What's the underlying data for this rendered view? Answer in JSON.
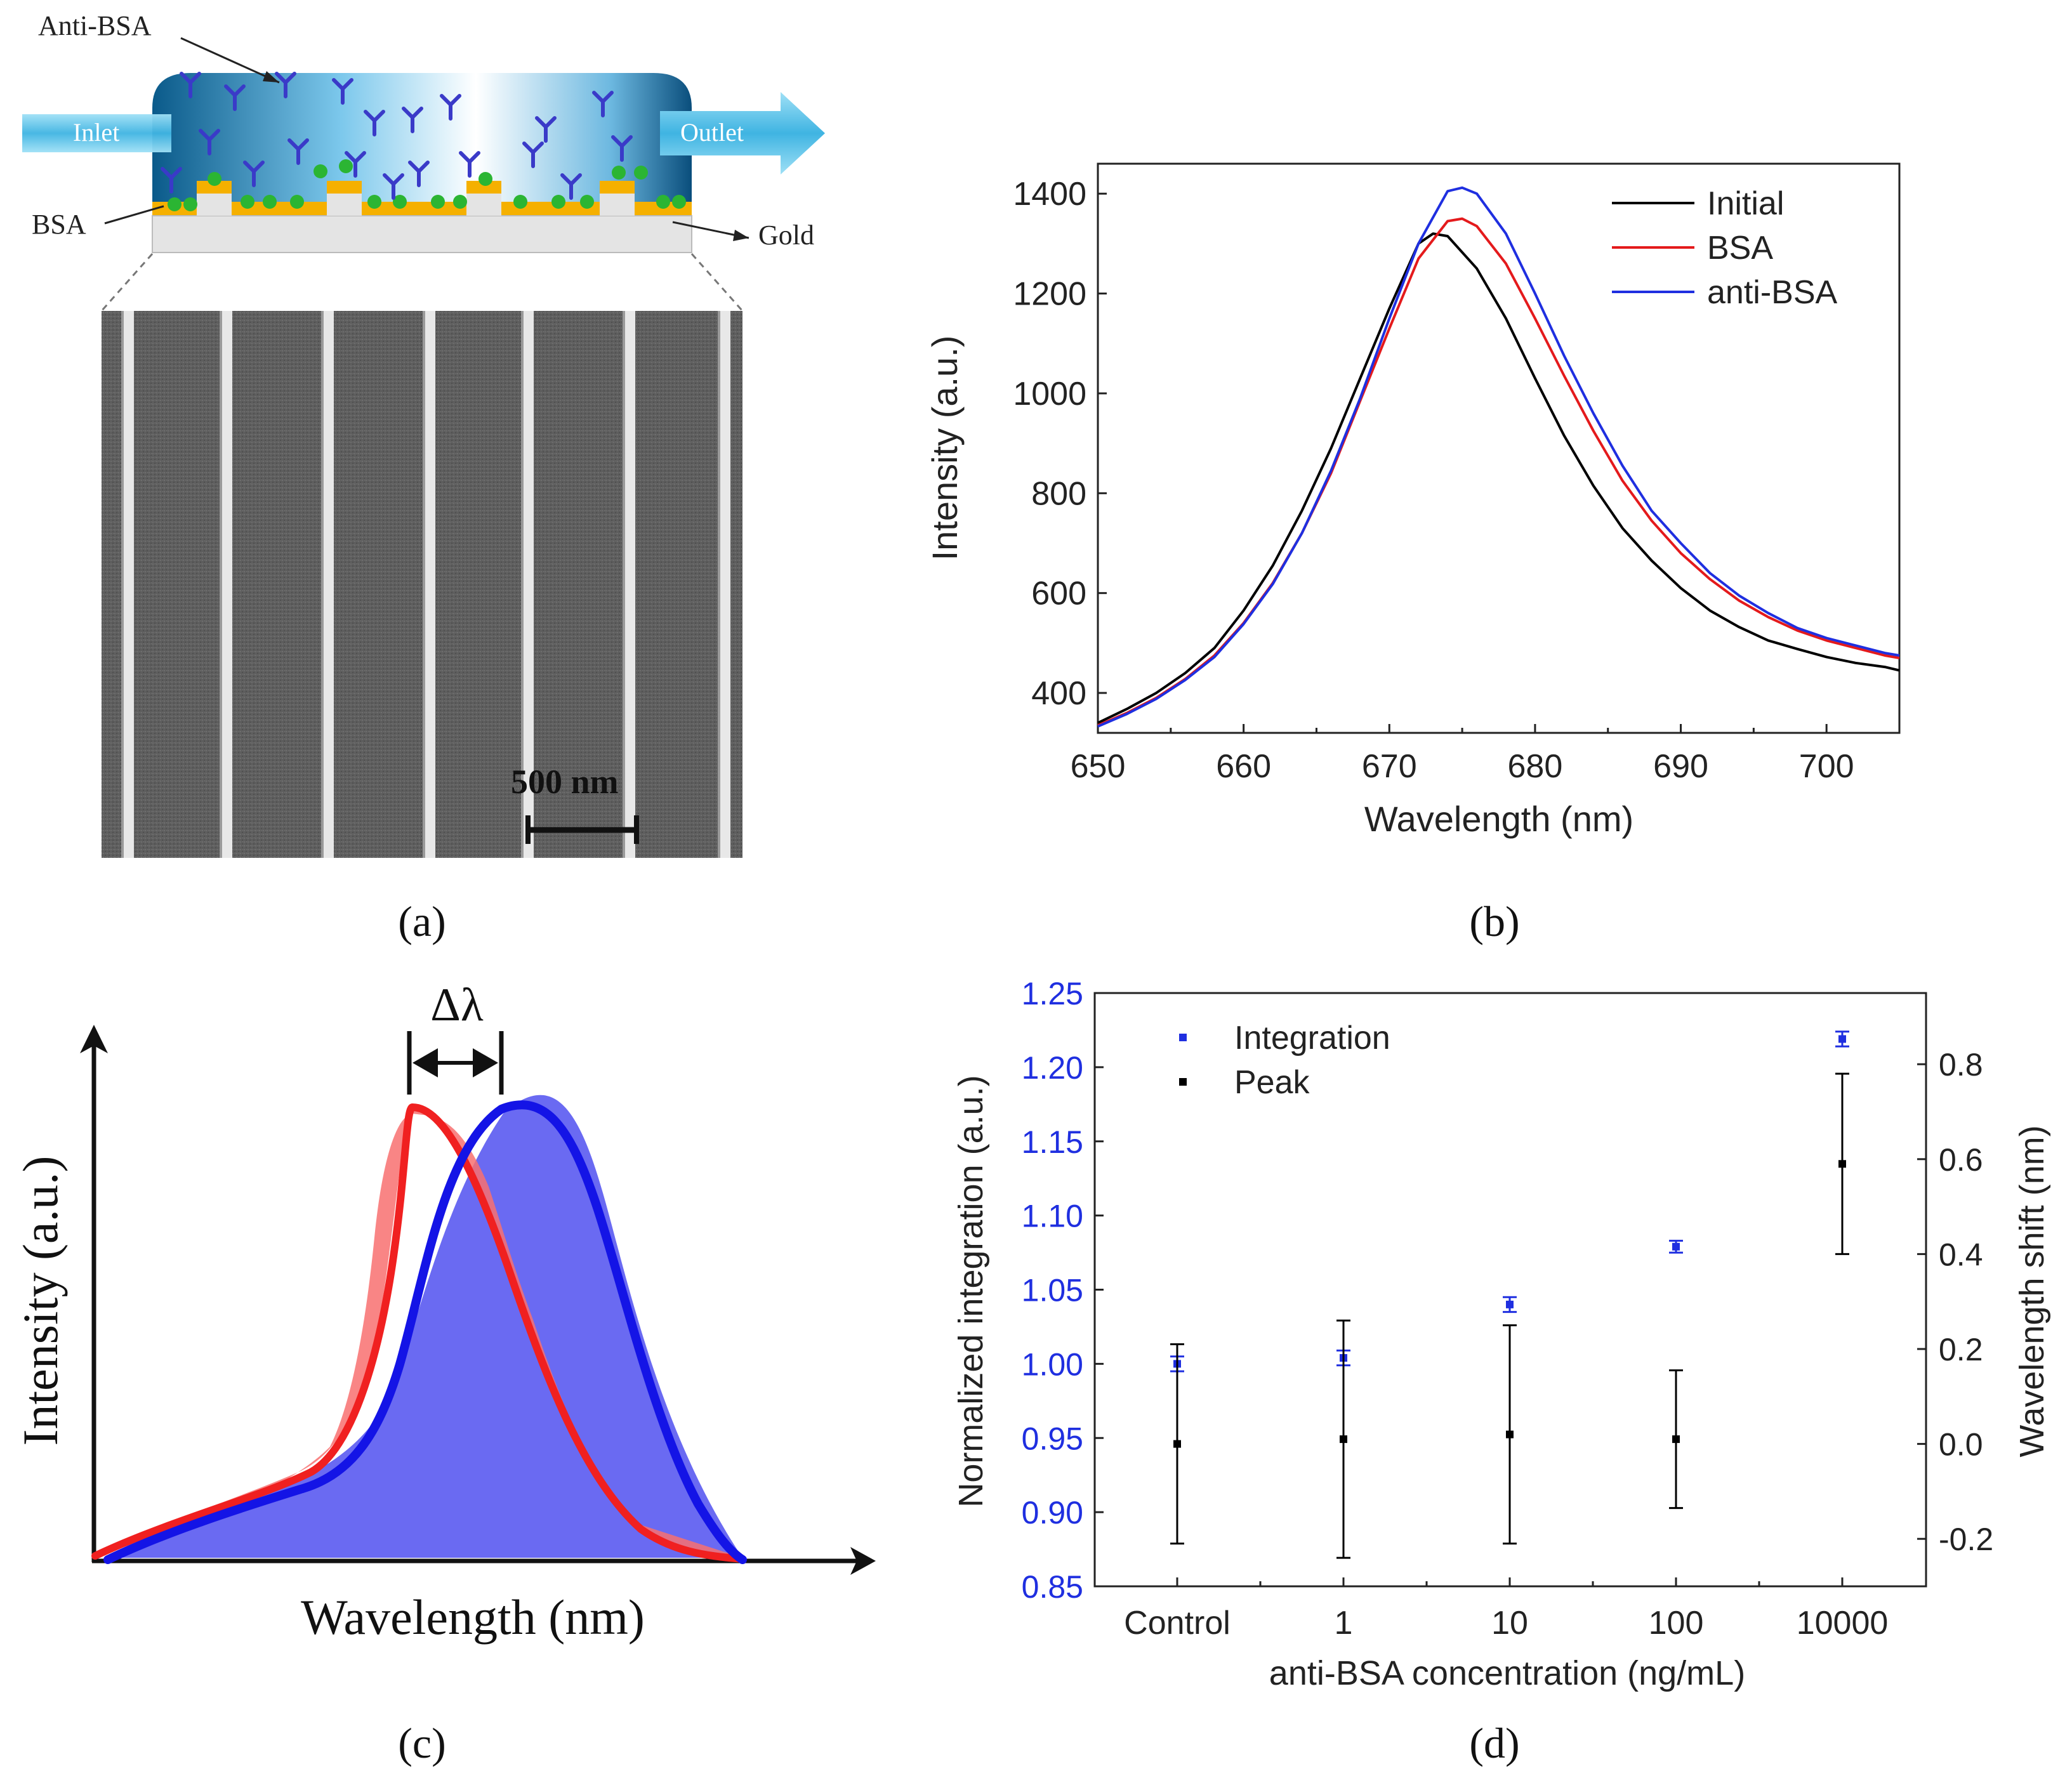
{
  "panels": {
    "a": {
      "caption": "(a)",
      "labels": {
        "anti_bsa": "Anti-BSA",
        "bsa": "BSA",
        "gold": "Gold",
        "inlet": "Inlet",
        "outlet": "Outlet",
        "scale_bar": "500 nm"
      },
      "colors": {
        "channel_dark": "#0a5a8a",
        "channel_light": "#ffffff",
        "gold": "#f5b000",
        "bsa": "#2bb533",
        "antibody": "#3a3ac8",
        "arrow": "#5cc8ea",
        "sem_background": "#5c5c5c",
        "sem_lines": "#e8e8e8"
      }
    },
    "b": {
      "caption": "(b)",
      "colors": {
        "Initial": "#000000",
        "BSA": "#e41a1c",
        "anti-BSA": "#1f2fe0"
      },
      "chart_data": {
        "type": "line",
        "xlabel": "Wavelength (nm)",
        "ylabel": "Intensity (a.u.)",
        "xlim": [
          650,
          705
        ],
        "ylim": [
          320,
          1460
        ],
        "xticks": [
          650,
          660,
          670,
          680,
          690,
          700
        ],
        "yticks": [
          400,
          600,
          800,
          1000,
          1200,
          1400
        ],
        "legend_position": "top-right",
        "grid": false,
        "series": [
          {
            "name": "Initial",
            "x": [
              650,
              652,
              654,
              656,
              658,
              660,
              662,
              664,
              666,
              668,
              670,
              672,
              673,
              674,
              676,
              678,
              680,
              682,
              684,
              686,
              688,
              690,
              692,
              694,
              696,
              698,
              700,
              702,
              704,
              705
            ],
            "y": [
              340,
              368,
              400,
              440,
              490,
              565,
              655,
              765,
              890,
              1030,
              1170,
              1300,
              1320,
              1315,
              1250,
              1150,
              1030,
              915,
              815,
              730,
              665,
              610,
              565,
              532,
              505,
              488,
              472,
              460,
              452,
              445
            ]
          },
          {
            "name": "BSA",
            "x": [
              650,
              652,
              654,
              656,
              658,
              660,
              662,
              664,
              666,
              668,
              670,
              672,
              674,
              675,
              676,
              678,
              680,
              682,
              684,
              686,
              688,
              690,
              692,
              694,
              696,
              698,
              700,
              702,
              704,
              705
            ],
            "y": [
              335,
              360,
              390,
              428,
              475,
              540,
              620,
              720,
              840,
              985,
              1130,
              1270,
              1345,
              1350,
              1335,
              1260,
              1150,
              1035,
              925,
              825,
              745,
              680,
              628,
              585,
              552,
              525,
              505,
              490,
              475,
              470
            ]
          },
          {
            "name": "anti-BSA",
            "x": [
              650,
              652,
              654,
              656,
              658,
              660,
              662,
              664,
              666,
              668,
              670,
              672,
              674,
              675,
              676,
              678,
              680,
              682,
              684,
              686,
              688,
              690,
              692,
              694,
              696,
              698,
              700,
              702,
              704,
              705
            ],
            "y": [
              333,
              358,
              388,
              426,
              472,
              538,
              618,
              720,
              845,
              990,
              1150,
              1300,
              1405,
              1412,
              1400,
              1320,
              1200,
              1075,
              960,
              855,
              765,
              700,
              640,
              595,
              560,
              530,
              510,
              495,
              480,
              475
            ]
          }
        ]
      }
    },
    "c": {
      "caption": "(c)",
      "labels": {
        "delta": "Δλ",
        "xlabel": "Wavelength (nm)",
        "ylabel": "Intensity (a.u.)"
      },
      "colors": {
        "red": "#f02020",
        "red_fill": "#f87070",
        "blue": "#1414e6",
        "blue_fill": "#6a6af2"
      }
    },
    "d": {
      "caption": "(d)",
      "colors": {
        "Integration": "#1f2fe0",
        "Peak": "#000000",
        "left_axis": "#1f2fe0"
      },
      "chart_data": {
        "type": "scatter",
        "xlabel": "anti-BSA concentration (ng/mL)",
        "ylabel": "Normalized integration (a.u.)",
        "y2label": "Wavelength shift (nm)",
        "categories": [
          "Control",
          "1",
          "10",
          "100",
          "10000"
        ],
        "ylim": [
          0.85,
          1.25
        ],
        "yticks": [
          "0.85",
          "0.90",
          "0.95",
          "1.00",
          "1.05",
          "1.10",
          "1.15",
          "1.20",
          "1.25"
        ],
        "y2lim": [
          -0.3,
          0.95
        ],
        "y2ticks": [
          "-0.2",
          "0.0",
          "0.2",
          "0.4",
          "0.6",
          "0.8"
        ],
        "legend_position": "top-left",
        "grid": false,
        "series": [
          {
            "name": "Integration",
            "axis": "left",
            "values": [
              1.0,
              1.004,
              1.04,
              1.079,
              1.219
            ],
            "errors": [
              0.005,
              0.005,
              0.005,
              0.004,
              0.005
            ]
          },
          {
            "name": "Peak",
            "axis": "right",
            "values": [
              0.0,
              0.01,
              0.02,
              0.01,
              0.59
            ],
            "errors": [
              0.21,
              0.25,
              0.23,
              0.145,
              0.19
            ]
          }
        ]
      }
    }
  }
}
